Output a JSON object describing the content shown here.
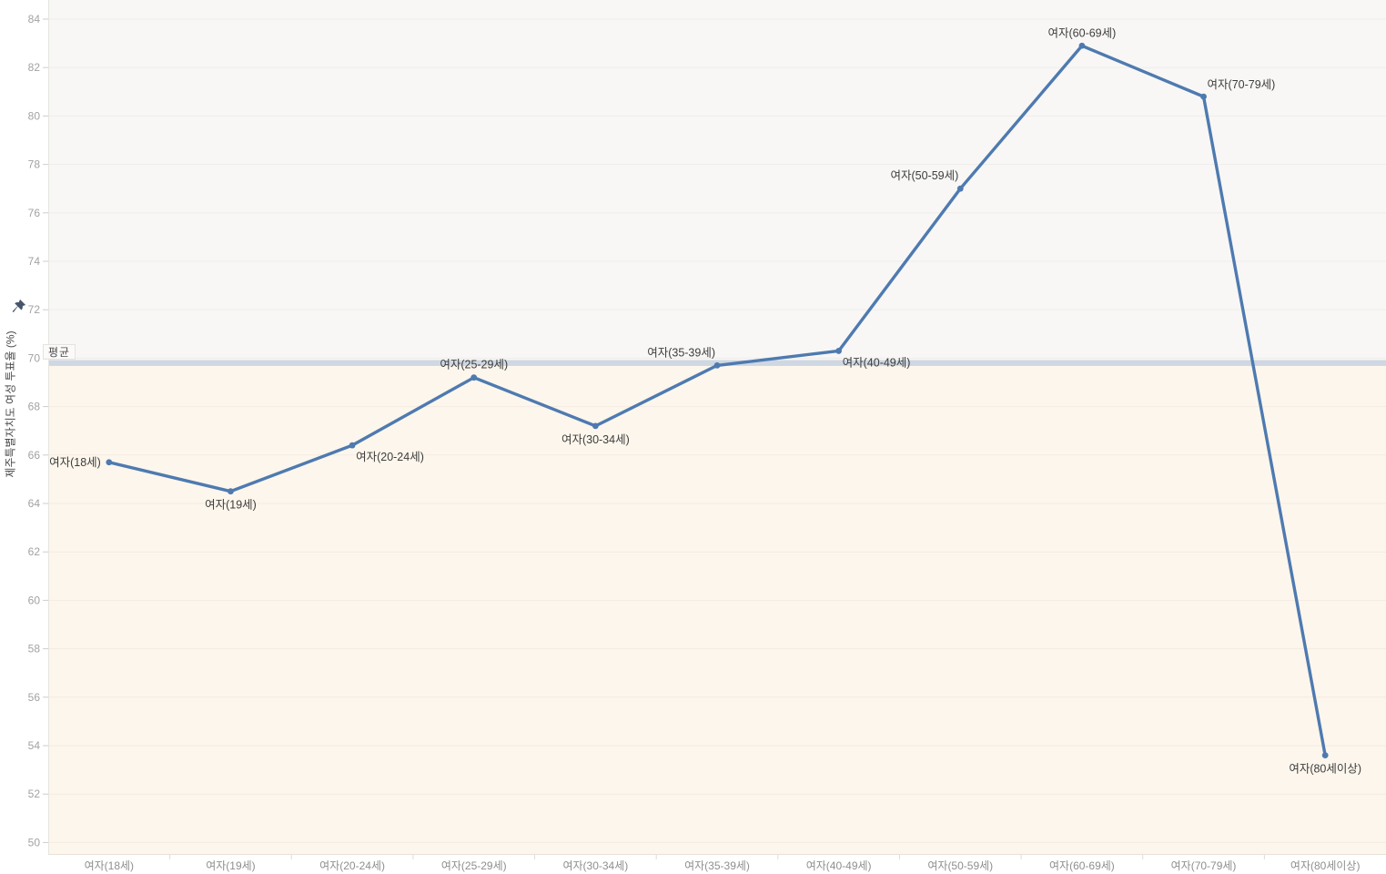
{
  "chart_data": {
    "type": "line",
    "title": "",
    "xlabel": "",
    "y_axis": {
      "title": "제주특별자치도 여성 투표율 (%)",
      "range": [
        50,
        84
      ],
      "tick_step": 2
    },
    "yticks": [
      84,
      82,
      80,
      78,
      76,
      74,
      72,
      70,
      68,
      66,
      64,
      62,
      60,
      58,
      56,
      54,
      52,
      50
    ],
    "categories": [
      "여자(18세)",
      "여자(19세)",
      "여자(20-24세)",
      "여자(25-29세)",
      "여자(30-34세)",
      "여자(35-39세)",
      "여자(40-49세)",
      "여자(50-59세)",
      "여자(60-69세)",
      "여자(70-79세)",
      "여자(80세이상)"
    ],
    "series": [
      {
        "name": "제주특별자치도 여성 투표율(%)",
        "values": [
          65.7,
          64.5,
          66.4,
          69.2,
          67.2,
          69.7,
          70.3,
          77.0,
          82.9,
          80.8,
          53.6
        ]
      }
    ],
    "point_label_anchors": [
      "left",
      "below",
      "below-right",
      "above",
      "below",
      "above-left",
      "below-right",
      "above-left",
      "above",
      "above-right",
      "below"
    ],
    "average_line": {
      "label": "평균",
      "value": 69.8
    },
    "grid": true,
    "legend": "none",
    "icons": {
      "y_axis_pin": "pushpin-icon"
    },
    "colors": {
      "line": "#4e7ab0",
      "marker": "#4e7ab0",
      "average_band": "#ced7e2",
      "above_average_bg": "#f8f7f5",
      "below_average_bg": "#fdf6ec",
      "ytick_text": "#a2a2a2",
      "xtick_text": "#8f8f8f",
      "point_label_text": "#3d3d3d",
      "pin": "#46566a"
    }
  }
}
